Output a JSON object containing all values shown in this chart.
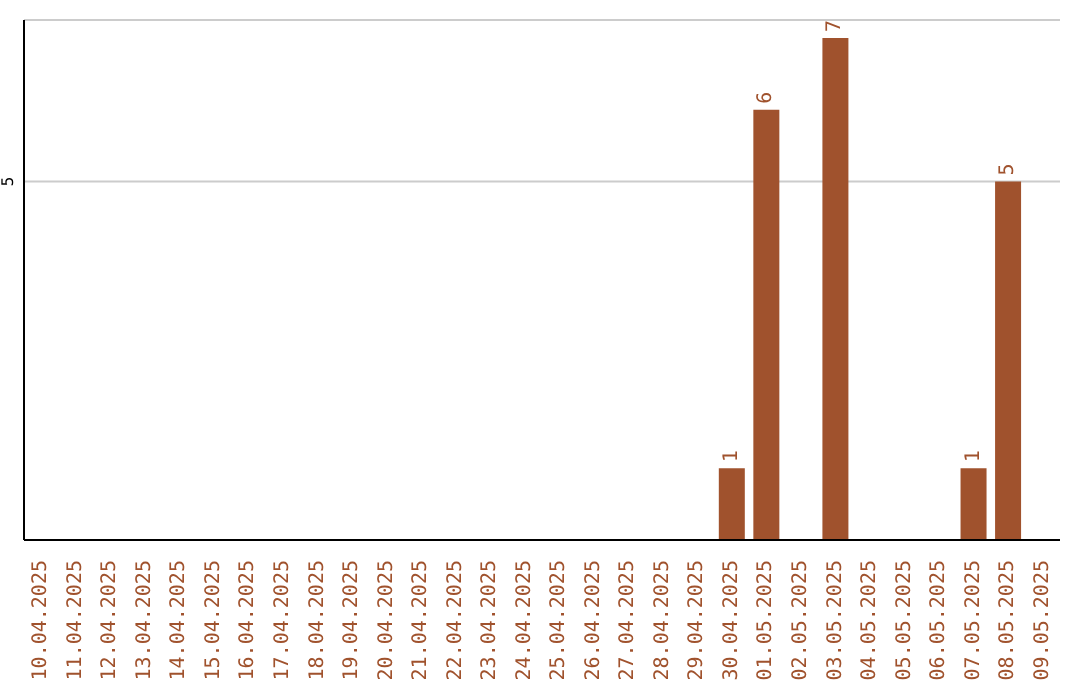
{
  "chart_data": {
    "type": "bar",
    "categories": [
      "10.04.2025",
      "11.04.2025",
      "12.04.2025",
      "13.04.2025",
      "14.04.2025",
      "15.04.2025",
      "16.04.2025",
      "17.04.2025",
      "18.04.2025",
      "19.04.2025",
      "20.04.2025",
      "21.04.2025",
      "22.04.2025",
      "23.04.2025",
      "24.04.2025",
      "25.04.2025",
      "26.04.2025",
      "27.04.2025",
      "28.04.2025",
      "29.04.2025",
      "30.04.2025",
      "01.05.2025",
      "02.05.2025",
      "03.05.2025",
      "04.05.2025",
      "05.05.2025",
      "06.05.2025",
      "07.05.2025",
      "08.05.2025",
      "09.05.2025"
    ],
    "values": [
      null,
      null,
      null,
      null,
      null,
      null,
      null,
      null,
      null,
      null,
      null,
      null,
      null,
      null,
      null,
      null,
      null,
      null,
      null,
      null,
      1,
      6,
      null,
      7,
      null,
      null,
      null,
      1,
      5,
      null
    ],
    "color": "#a0522d",
    "ylim": [
      0,
      7.25
    ],
    "yticks": [
      5
    ],
    "grid": "y",
    "data_labels": true
  }
}
